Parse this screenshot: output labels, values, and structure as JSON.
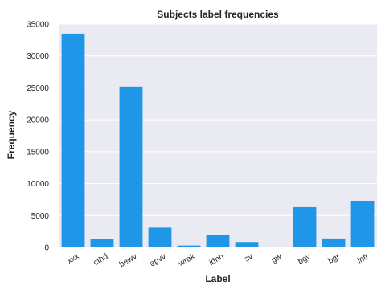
{
  "chart_data": {
    "type": "bar",
    "title": "Subjects label frequencies",
    "xlabel": "Label",
    "ylabel": "Frequency",
    "categories": [
      "xxx",
      "cthd",
      "bewv",
      "apvv",
      "wrak",
      "idnh",
      "sv",
      "gw",
      "bgv",
      "bgr",
      "infr"
    ],
    "values": [
      33500,
      1300,
      25200,
      3100,
      300,
      1900,
      850,
      100,
      6300,
      1400,
      7300
    ],
    "ylim": [
      0,
      35000
    ],
    "yticks": [
      0,
      5000,
      10000,
      15000,
      20000,
      25000,
      30000,
      35000
    ],
    "grid": true,
    "bar_color": "#1f96e8",
    "plot_background": "#eaeaf2",
    "grid_color": "#ffffff"
  }
}
